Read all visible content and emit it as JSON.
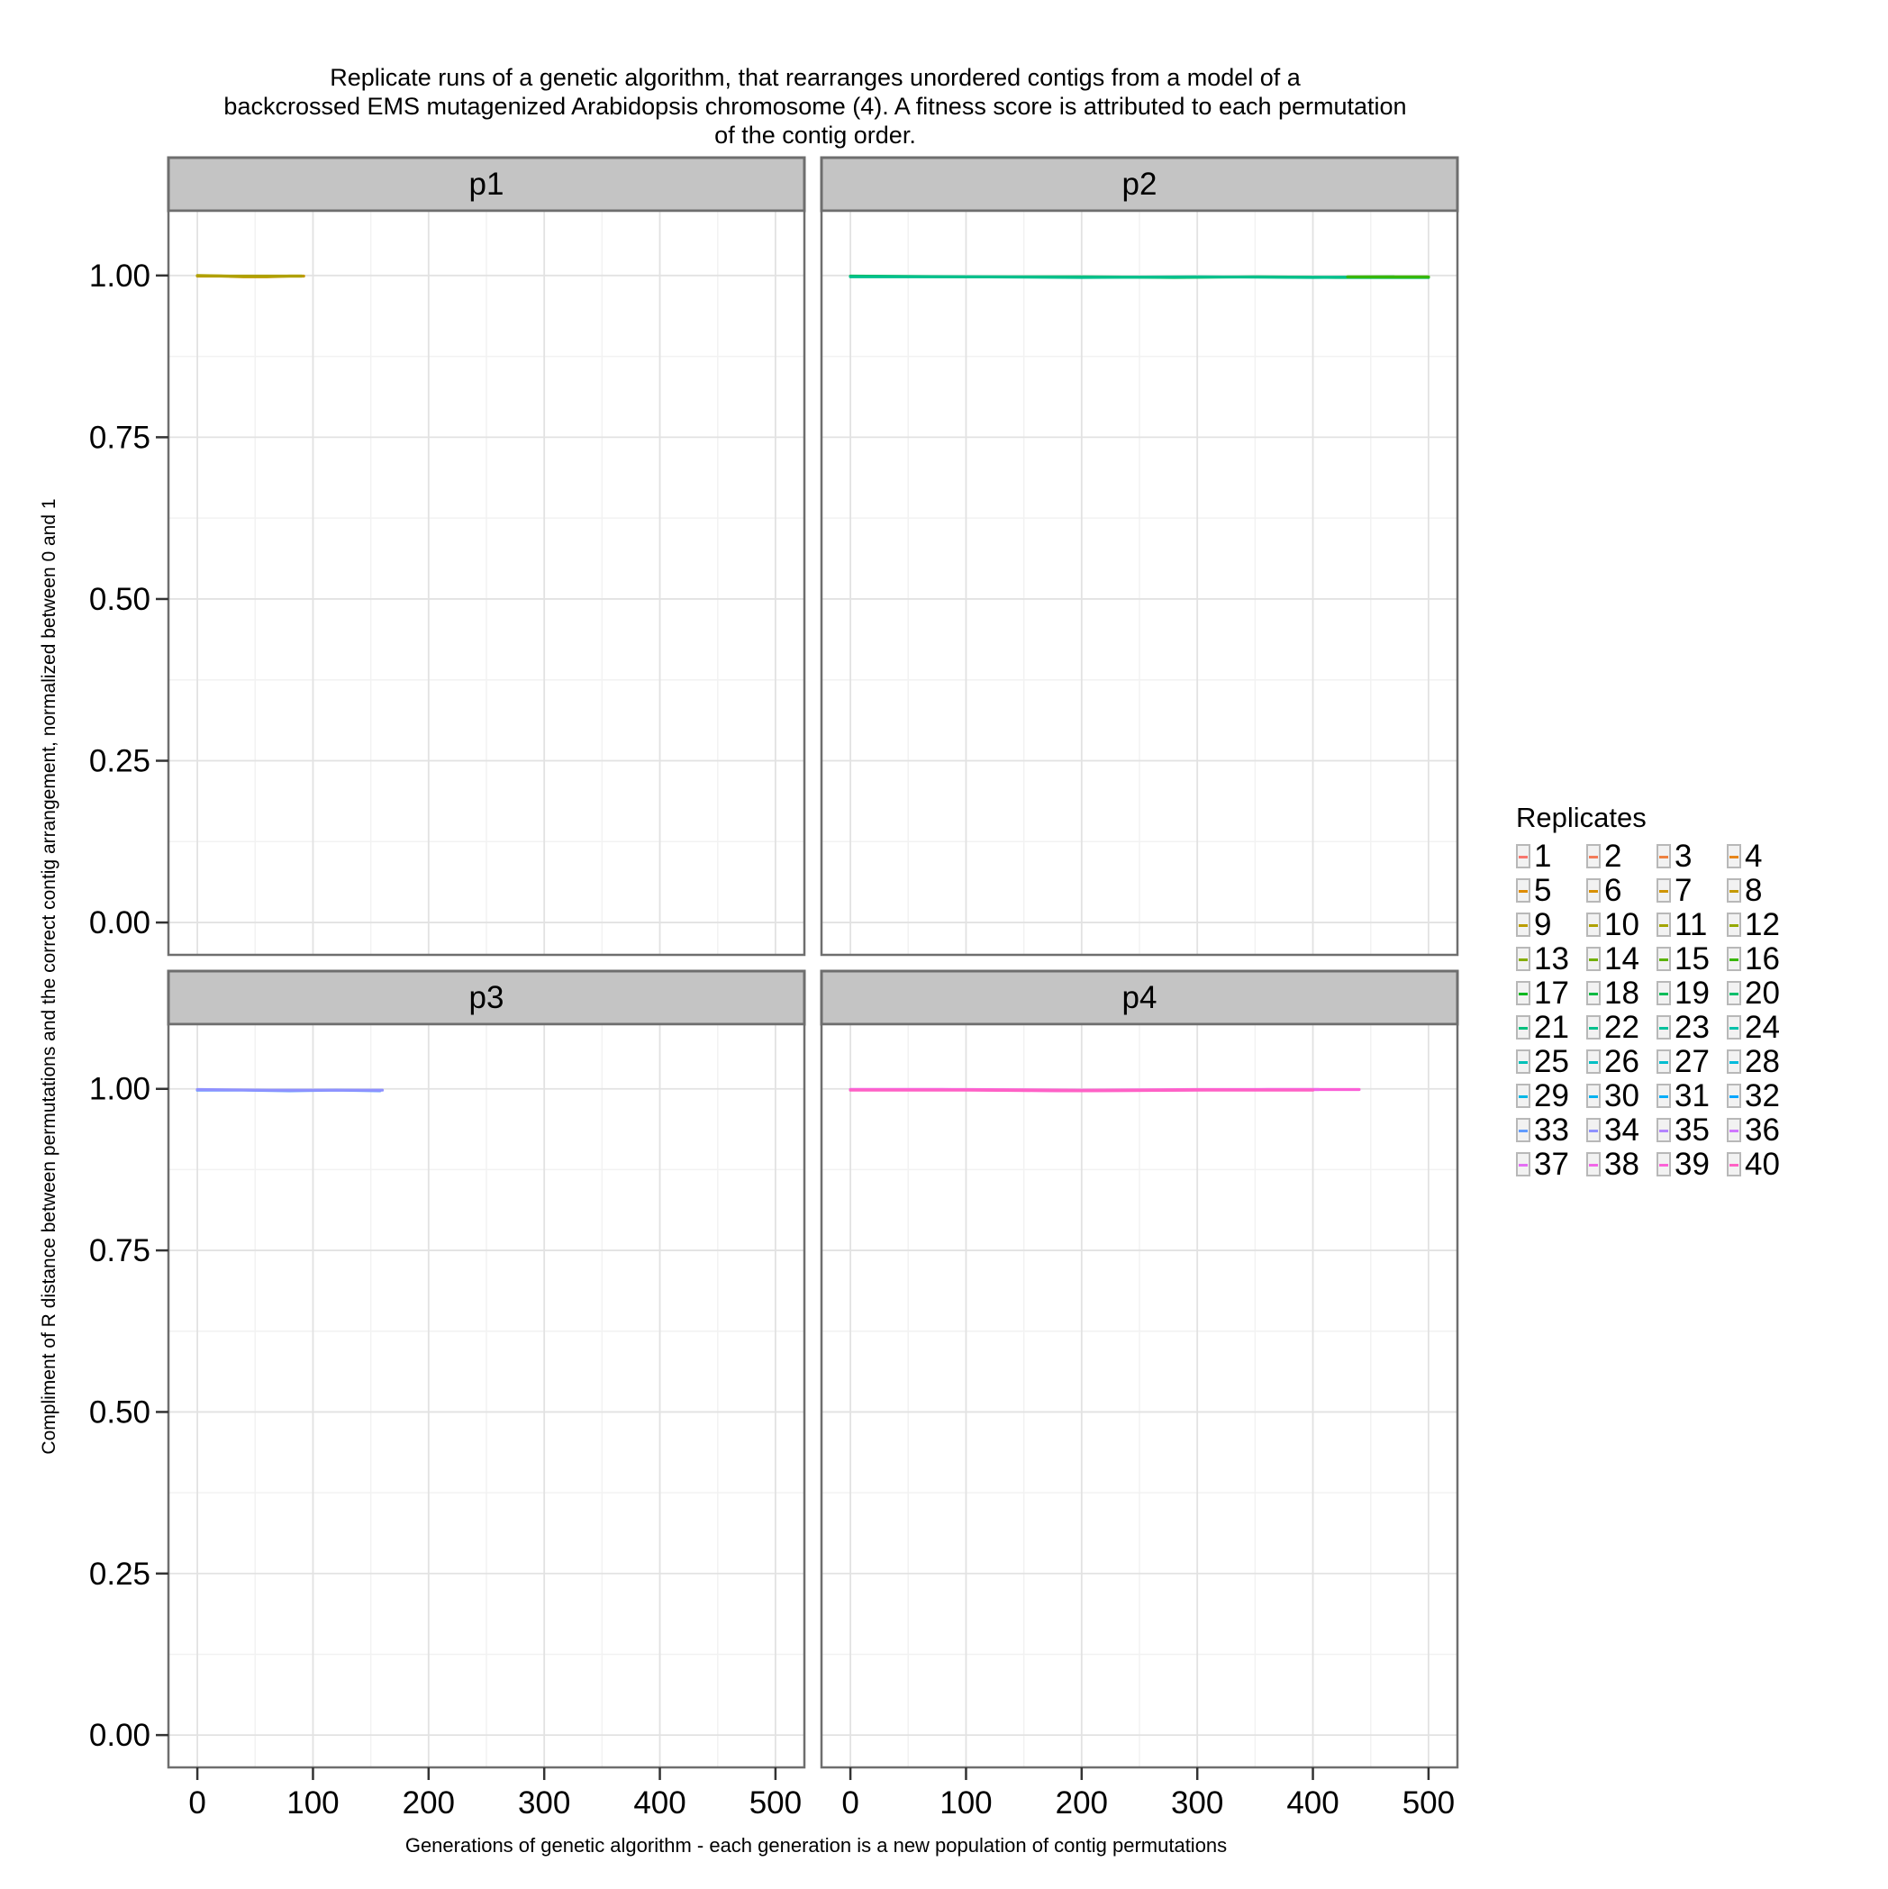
{
  "chart_data": {
    "type": "line",
    "title": "Replicate runs of a genetic algorithm, that rearranges unordered contigs from a model of a\nbackcrossed EMS mutagenized Arabidopsis chromosome (4). A fitness score is attributed to each permutation\nof the contig order.",
    "xlabel": "Generations of genetic algorithm - each generation is a new population of contig permutations",
    "ylabel": "Compliment of R distance between permutations and the correct contig arrangement, normalized between 0 and 1",
    "xlim": [
      -25,
      525
    ],
    "ylim": [
      -0.05,
      1.1
    ],
    "x_ticks": [
      "0",
      "100",
      "200",
      "300",
      "400",
      "500"
    ],
    "y_ticks": [
      "0.00",
      "0.25",
      "0.50",
      "0.75",
      "1.00"
    ],
    "grid": true,
    "legend_position": "right",
    "legend_title": "Replicates",
    "legend_entries": [
      "1",
      "2",
      "3",
      "4",
      "5",
      "6",
      "7",
      "8",
      "9",
      "10",
      "11",
      "12",
      "13",
      "14",
      "15",
      "16",
      "17",
      "18",
      "19",
      "20",
      "21",
      "22",
      "23",
      "24",
      "25",
      "26",
      "27",
      "28",
      "29",
      "30",
      "31",
      "32",
      "33",
      "34",
      "35",
      "36",
      "37",
      "38",
      "39",
      "40"
    ],
    "legend_colors": [
      "#F8766D",
      "#F37B59",
      "#ED8141",
      "#E7861B",
      "#DF8C00",
      "#D89000",
      "#CF9400",
      "#C59900",
      "#BB9D00",
      "#AFA100",
      "#A3A500",
      "#95A900",
      "#85AD00",
      "#72B000",
      "#5BB300",
      "#39B600",
      "#00B81F",
      "#00BA42",
      "#00BC59",
      "#00BE6C",
      "#00BF7D",
      "#00C08D",
      "#00C19C",
      "#00C1AA",
      "#00C0B8",
      "#00BFC4",
      "#00BDD0",
      "#00BADC",
      "#00B7E7",
      "#00B2F1",
      "#00ADFA",
      "#00A6FF",
      "#619CFF",
      "#8F91FF",
      "#B385FF",
      "#CF78FF",
      "#E46EF4",
      "#F166E8",
      "#FB61D7",
      "#FF61C5"
    ],
    "panels": [
      {
        "label": "p1",
        "series": [
          {
            "color": "#C59900",
            "x": [
              0,
              20,
              40,
              60,
              80,
              92
            ],
            "y": [
              0.999,
              0.999,
              0.998,
              0.998,
              0.999,
              0.999
            ]
          },
          {
            "color": "#AFA100",
            "x": [
              0,
              30,
              60,
              90
            ],
            "y": [
              1.0,
              0.999,
              0.999,
              0.999
            ]
          }
        ]
      },
      {
        "label": "p2",
        "series": [
          {
            "color": "#00BC59",
            "x": [
              0,
              100,
              200,
              280,
              350,
              420,
              500
            ],
            "y": [
              0.999,
              0.998,
              0.998,
              0.997,
              0.998,
              0.997,
              0.997
            ]
          },
          {
            "color": "#00C08D",
            "x": [
              0,
              100,
              200,
              300,
              400,
              470
            ],
            "y": [
              0.998,
              0.998,
              0.997,
              0.998,
              0.997,
              0.998
            ]
          },
          {
            "color": "#39B600",
            "x": [
              430,
              470,
              500
            ],
            "y": [
              0.998,
              0.998,
              0.998
            ]
          }
        ]
      },
      {
        "label": "p3",
        "series": [
          {
            "color": "#619CFF",
            "x": [
              0,
              40,
              80,
              120,
              158
            ],
            "y": [
              0.998,
              0.998,
              0.997,
              0.998,
              0.997
            ]
          },
          {
            "color": "#8F91FF",
            "x": [
              0,
              60,
              120,
              160
            ],
            "y": [
              0.999,
              0.998,
              0.998,
              0.998
            ]
          }
        ]
      },
      {
        "label": "p4",
        "series": [
          {
            "color": "#FB61D7",
            "x": [
              0,
              100,
              200,
              300,
              380,
              440
            ],
            "y": [
              0.999,
              0.999,
              0.998,
              0.999,
              0.999,
              0.999
            ]
          },
          {
            "color": "#F166E8",
            "x": [
              0,
              80,
              180,
              280,
              360,
              405
            ],
            "y": [
              0.999,
              0.999,
              0.997,
              0.998,
              0.999,
              0.999
            ]
          },
          {
            "color": "#FF61C5",
            "x": [
              0,
              100,
              200,
              300,
              400
            ],
            "y": [
              0.998,
              0.998,
              0.997,
              0.998,
              0.998
            ]
          }
        ]
      }
    ]
  }
}
